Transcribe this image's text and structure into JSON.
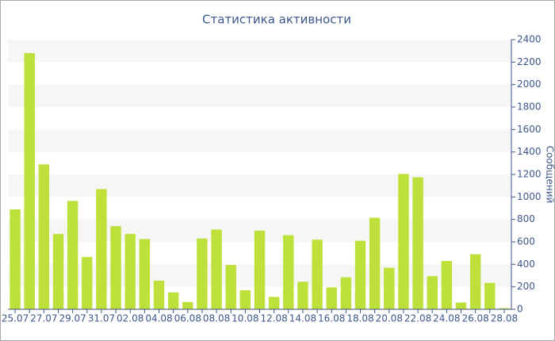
{
  "chart_data": {
    "type": "bar",
    "title": "Статистика активности",
    "y_label": "Сообщений",
    "categories": [
      "25.07",
      null,
      "27.07",
      null,
      "29.07",
      null,
      "31.07",
      null,
      "02.08",
      null,
      "04.08",
      null,
      "06.08",
      null,
      "08.08",
      null,
      "10.08",
      null,
      "12.08",
      null,
      "14.08",
      null,
      "16.08",
      null,
      "18.08",
      null,
      "20.08",
      null,
      "22.08",
      null,
      "24.08",
      null,
      "26.08",
      null,
      "28.08"
    ],
    "values": [
      890,
      2280,
      1290,
      670,
      965,
      465,
      1070,
      740,
      670,
      625,
      255,
      150,
      65,
      630,
      710,
      395,
      170,
      700,
      110,
      660,
      245,
      620,
      195,
      285,
      610,
      815,
      370,
      1205,
      1175,
      295,
      430,
      60,
      490,
      235,
      10
    ],
    "color": "#bde13a",
    "ylim": [
      0,
      2400
    ],
    "yticks": [
      0,
      200,
      400,
      600,
      800,
      1000,
      1200,
      1400,
      1600,
      1800,
      2000,
      2200,
      2400
    ],
    "grid": true
  }
}
